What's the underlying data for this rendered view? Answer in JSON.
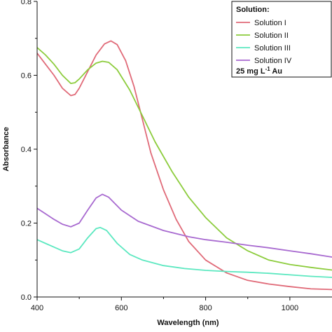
{
  "chart_data": {
    "type": "line",
    "xlabel": "Wavelength (nm)",
    "ylabel": "Absorbance",
    "xlim": [
      400,
      1100
    ],
    "ylim": [
      0,
      0.8
    ],
    "x_ticks": [
      "400",
      "600",
      "800",
      "1000"
    ],
    "y_ticks": [
      "0.0",
      "0.2",
      "0.4",
      "0.6",
      "0.8"
    ],
    "legend": {
      "title": "Solution:",
      "note_prefix": "25 mg L",
      "note_sup": "-1",
      "note_suffix": " Au",
      "placement": "top-right"
    },
    "series": [
      {
        "name": "Solution I",
        "color": "#e06a78",
        "points": [
          [
            400,
            0.66
          ],
          [
            420,
            0.63
          ],
          [
            440,
            0.6
          ],
          [
            460,
            0.565
          ],
          [
            480,
            0.545
          ],
          [
            490,
            0.548
          ],
          [
            500,
            0.565
          ],
          [
            520,
            0.61
          ],
          [
            540,
            0.655
          ],
          [
            560,
            0.685
          ],
          [
            575,
            0.693
          ],
          [
            590,
            0.683
          ],
          [
            610,
            0.64
          ],
          [
            630,
            0.57
          ],
          [
            650,
            0.48
          ],
          [
            670,
            0.39
          ],
          [
            700,
            0.29
          ],
          [
            730,
            0.21
          ],
          [
            760,
            0.15
          ],
          [
            800,
            0.1
          ],
          [
            850,
            0.065
          ],
          [
            900,
            0.045
          ],
          [
            950,
            0.035
          ],
          [
            1000,
            0.028
          ],
          [
            1050,
            0.022
          ],
          [
            1100,
            0.02
          ]
        ]
      },
      {
        "name": "Solution II",
        "color": "#8ccc3c",
        "points": [
          [
            400,
            0.675
          ],
          [
            420,
            0.655
          ],
          [
            440,
            0.63
          ],
          [
            460,
            0.6
          ],
          [
            480,
            0.578
          ],
          [
            490,
            0.58
          ],
          [
            500,
            0.59
          ],
          [
            520,
            0.615
          ],
          [
            540,
            0.633
          ],
          [
            555,
            0.638
          ],
          [
            570,
            0.635
          ],
          [
            590,
            0.615
          ],
          [
            620,
            0.56
          ],
          [
            650,
            0.49
          ],
          [
            680,
            0.42
          ],
          [
            720,
            0.34
          ],
          [
            760,
            0.27
          ],
          [
            800,
            0.215
          ],
          [
            850,
            0.16
          ],
          [
            900,
            0.125
          ],
          [
            950,
            0.1
          ],
          [
            1000,
            0.088
          ],
          [
            1050,
            0.08
          ],
          [
            1100,
            0.073
          ]
        ]
      },
      {
        "name": "Solution III",
        "color": "#5ce8c0",
        "points": [
          [
            400,
            0.155
          ],
          [
            420,
            0.145
          ],
          [
            440,
            0.135
          ],
          [
            460,
            0.125
          ],
          [
            480,
            0.12
          ],
          [
            500,
            0.13
          ],
          [
            520,
            0.16
          ],
          [
            540,
            0.185
          ],
          [
            550,
            0.188
          ],
          [
            565,
            0.18
          ],
          [
            590,
            0.145
          ],
          [
            620,
            0.115
          ],
          [
            650,
            0.1
          ],
          [
            700,
            0.085
          ],
          [
            750,
            0.077
          ],
          [
            800,
            0.072
          ],
          [
            850,
            0.069
          ],
          [
            900,
            0.067
          ],
          [
            950,
            0.064
          ],
          [
            1000,
            0.06
          ],
          [
            1050,
            0.056
          ],
          [
            1100,
            0.053
          ]
        ]
      },
      {
        "name": "Solution IV",
        "color": "#a86ad0",
        "points": [
          [
            400,
            0.24
          ],
          [
            420,
            0.225
          ],
          [
            440,
            0.21
          ],
          [
            460,
            0.197
          ],
          [
            480,
            0.19
          ],
          [
            500,
            0.2
          ],
          [
            520,
            0.235
          ],
          [
            540,
            0.268
          ],
          [
            555,
            0.278
          ],
          [
            570,
            0.27
          ],
          [
            600,
            0.235
          ],
          [
            640,
            0.205
          ],
          [
            700,
            0.18
          ],
          [
            760,
            0.163
          ],
          [
            800,
            0.155
          ],
          [
            850,
            0.148
          ],
          [
            900,
            0.14
          ],
          [
            950,
            0.133
          ],
          [
            1000,
            0.125
          ],
          [
            1050,
            0.117
          ],
          [
            1100,
            0.108
          ]
        ]
      }
    ]
  }
}
